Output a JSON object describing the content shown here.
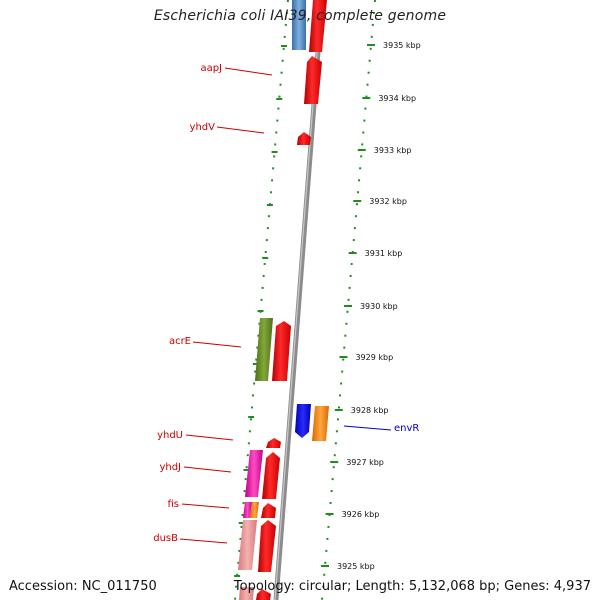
{
  "title": "Escherichia coli IAI39, complete genome",
  "accession": "Accession: NC_011750",
  "summary": "Topology: circular; Length: 5,132,068 bp; Genes: 4,937",
  "colors": {
    "background": "#ffffff",
    "tick": "#228b22",
    "backbone": "#8c8c8c",
    "label_red": "#cc0000",
    "label_blue": "#0000cc"
  },
  "ticks": [
    {
      "label": "3935 kbp"
    },
    {
      "label": "3934 kbp"
    },
    {
      "label": "3933 kbp"
    },
    {
      "label": "3932 kbp"
    },
    {
      "label": "3931 kbp"
    },
    {
      "label": "3930 kbp"
    },
    {
      "label": "3929 kbp"
    },
    {
      "label": "3928 kbp"
    },
    {
      "label": "3927 kbp"
    },
    {
      "label": "3926 kbp"
    },
    {
      "label": "3925 kbp"
    }
  ],
  "gene_labels": [
    {
      "name": "aapJ",
      "color": "#cc0000"
    },
    {
      "name": "yhdV",
      "color": "#cc0000"
    },
    {
      "name": "acrE",
      "color": "#cc0000"
    },
    {
      "name": "yhdU",
      "color": "#cc0000"
    },
    {
      "name": "yhdJ",
      "color": "#cc0000"
    },
    {
      "name": "fis",
      "color": "#cc0000"
    },
    {
      "name": "dusB",
      "color": "#cc0000"
    },
    {
      "name": "envR",
      "color": "#0000cc"
    }
  ]
}
